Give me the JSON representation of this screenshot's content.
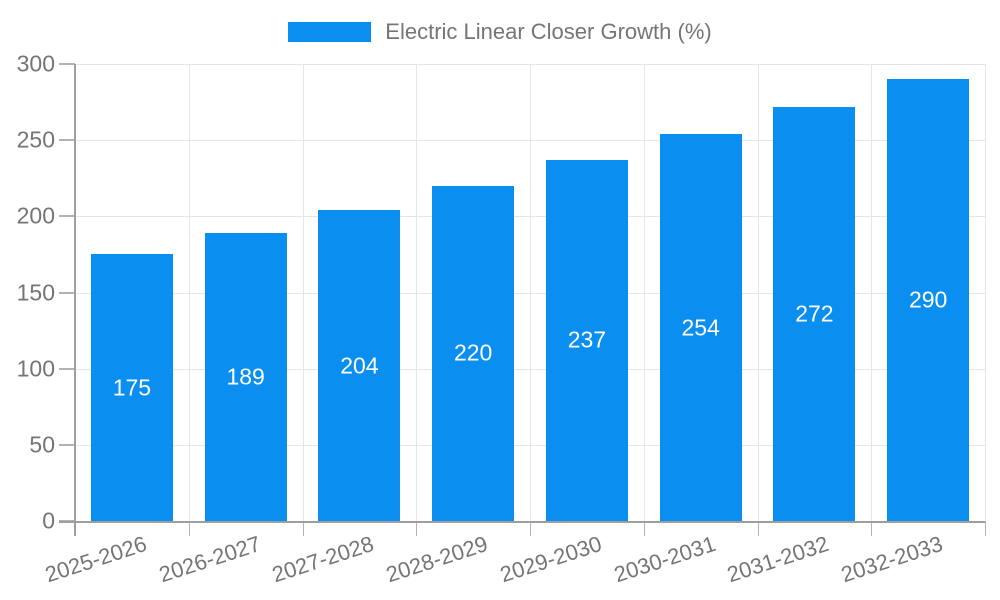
{
  "legend": {
    "label": "Electric Linear Closer Growth (%)"
  },
  "chart_data": {
    "type": "bar",
    "title": "Electric Linear Closer Growth (%)",
    "categories": [
      "2025-2026",
      "2026-2027",
      "2027-2028",
      "2028-2029",
      "2029-2030",
      "2030-2031",
      "2031-2032",
      "2032-2033"
    ],
    "values": [
      175,
      189,
      204,
      220,
      237,
      254,
      272,
      290
    ],
    "xlabel": "",
    "ylabel": "",
    "ylim": [
      0,
      300
    ],
    "yticks": [
      0,
      50,
      100,
      150,
      200,
      250,
      300
    ],
    "grid": true,
    "legend_position": "top-center",
    "x_label_rotation_deg": -18,
    "value_labels": "centered-inside-bars",
    "colors": {
      "bar": "#0a8ff0",
      "value_label": "#ffffff",
      "grid": "#e6e6e6",
      "axis": "#9e9e9e",
      "tick": "#b3b3b3",
      "text": "#757575",
      "background": "#ffffff"
    }
  }
}
